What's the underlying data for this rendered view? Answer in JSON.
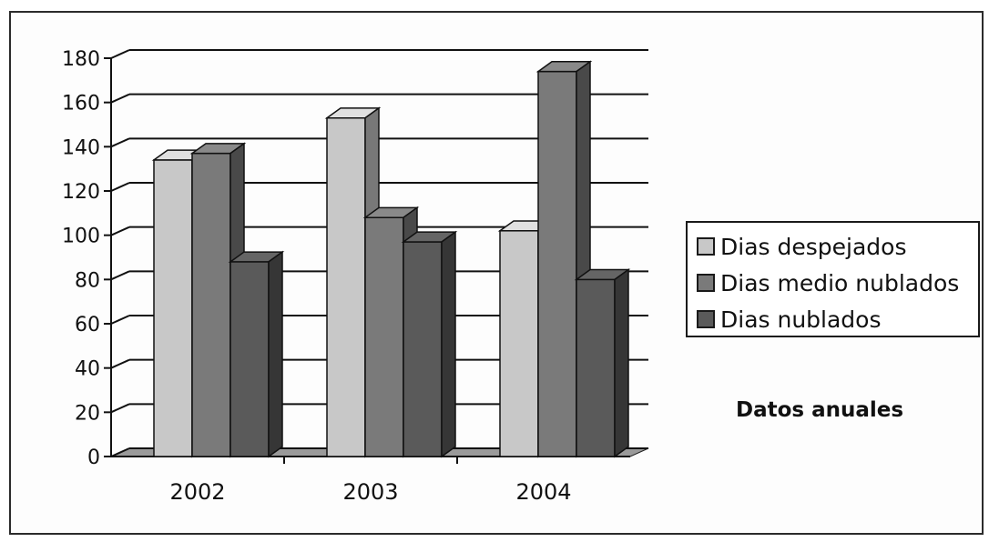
{
  "chart_data": {
    "type": "bar",
    "categories": [
      "2002",
      "2003",
      "2004"
    ],
    "series": [
      {
        "name": "Dias despejados",
        "values": [
          134,
          153,
          102
        ],
        "color": "#c8c8c8"
      },
      {
        "name": "Dias medio nublados",
        "values": [
          137,
          108,
          174
        ],
        "color": "#7a7a7a"
      },
      {
        "name": "Dias nublados",
        "values": [
          88,
          97,
          80
        ],
        "color": "#5a5a5a"
      }
    ],
    "ylim": [
      0,
      180
    ],
    "yticks": [
      0,
      20,
      40,
      60,
      80,
      100,
      120,
      140,
      160,
      180
    ],
    "grid": true,
    "legend_position": "right",
    "annotation": "Datos anuales",
    "xlabel": "",
    "ylabel": ""
  }
}
